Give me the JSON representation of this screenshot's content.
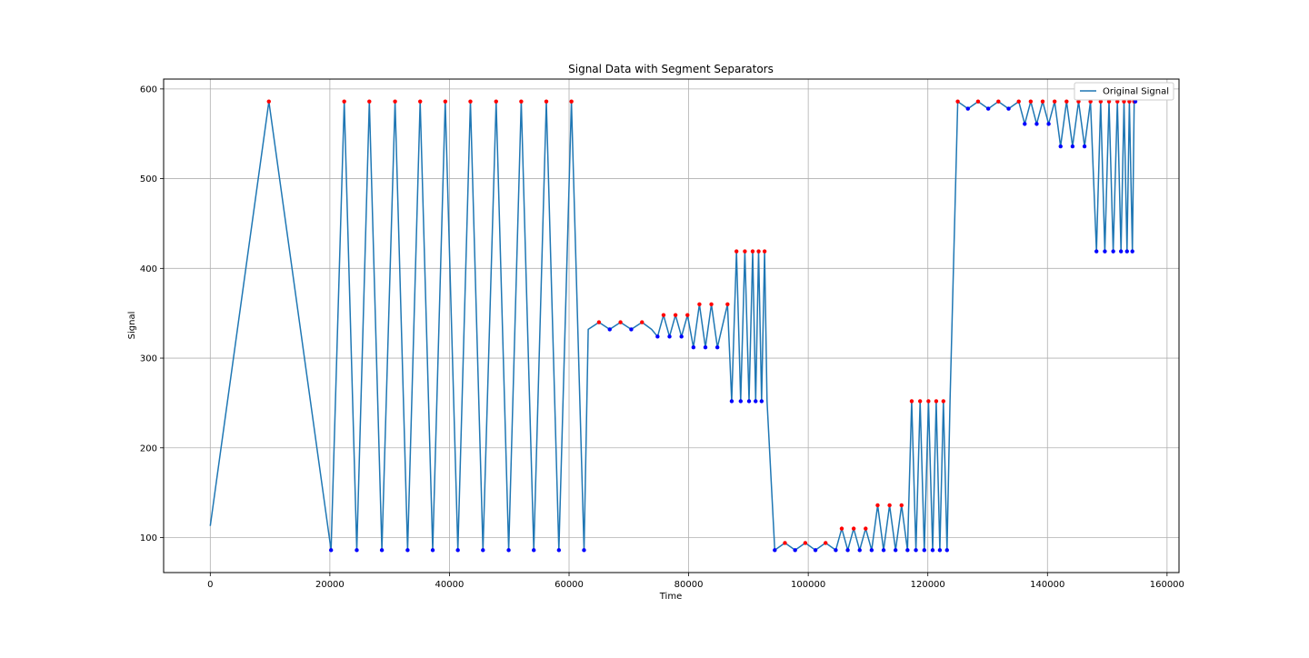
{
  "chart_data": {
    "type": "line",
    "title": "Signal Data with Segment Separators",
    "xlabel": "Time",
    "ylabel": "Signal",
    "xlim": [
      -7800,
      162000
    ],
    "ylim": [
      61,
      611
    ],
    "xticks": [
      0,
      20000,
      40000,
      60000,
      80000,
      100000,
      120000,
      140000,
      160000
    ],
    "yticks": [
      100,
      200,
      300,
      400,
      500,
      600
    ],
    "grid": true,
    "legend": {
      "position": "top-right",
      "entries": [
        "Original Signal"
      ]
    },
    "colors": {
      "line": "#1f77b4",
      "peak_marker": "#ff0000",
      "trough_marker": "#0000ff",
      "grid": "#b0b0b0"
    },
    "series": [
      {
        "name": "Original Signal",
        "x": [
          0,
          9800,
          20200,
          22400,
          24500,
          26600,
          28700,
          30900,
          33000,
          35100,
          37200,
          39300,
          41400,
          43500,
          45600,
          47800,
          49900,
          52000,
          54100,
          56200,
          58300,
          60400,
          62500,
          63200,
          65000,
          66800,
          68600,
          70400,
          72200,
          73800,
          74800,
          75800,
          76800,
          77800,
          78800,
          79800,
          80800,
          81800,
          82800,
          83800,
          84800,
          86500,
          87200,
          88000,
          88700,
          89400,
          90100,
          90700,
          91200,
          91700,
          92200,
          92700,
          93100,
          94400,
          96100,
          97800,
          99500,
          101200,
          102900,
          104600,
          105600,
          106600,
          107600,
          108600,
          109600,
          110600,
          111600,
          112600,
          113600,
          114600,
          115600,
          116600,
          117300,
          118000,
          118700,
          119400,
          120100,
          120800,
          121400,
          122000,
          122600,
          123200,
          123700,
          125000,
          126700,
          128400,
          130100,
          131800,
          133500,
          135200,
          136200,
          137200,
          138200,
          139200,
          140200,
          141200,
          142200,
          143200,
          144200,
          145200,
          146200,
          147200,
          148200,
          148900,
          149600,
          150300,
          151000,
          151700,
          152300,
          152800,
          153300,
          153700,
          154200,
          154500,
          154700
        ],
        "values": [
          113,
          586,
          86,
          586,
          86,
          586,
          86,
          586,
          86,
          586,
          86,
          586,
          86,
          586,
          86,
          586,
          86,
          586,
          86,
          586,
          86,
          586,
          86,
          332,
          340,
          332,
          340,
          332,
          340,
          332,
          324,
          348,
          324,
          348,
          324,
          348,
          312,
          360,
          312,
          360,
          312,
          360,
          252,
          419,
          252,
          419,
          252,
          419,
          252,
          419,
          252,
          419,
          252,
          86,
          94,
          86,
          94,
          86,
          94,
          86,
          110,
          86,
          110,
          86,
          110,
          86,
          136,
          86,
          136,
          86,
          136,
          86,
          252,
          86,
          252,
          86,
          252,
          86,
          252,
          86,
          252,
          86,
          252,
          586,
          578,
          586,
          578,
          586,
          578,
          586,
          561,
          586,
          561,
          586,
          561,
          586,
          536,
          586,
          536,
          586,
          536,
          586,
          419,
          586,
          419,
          586,
          419,
          586,
          419,
          586,
          419,
          586,
          419,
          586,
          586
        ]
      }
    ]
  }
}
